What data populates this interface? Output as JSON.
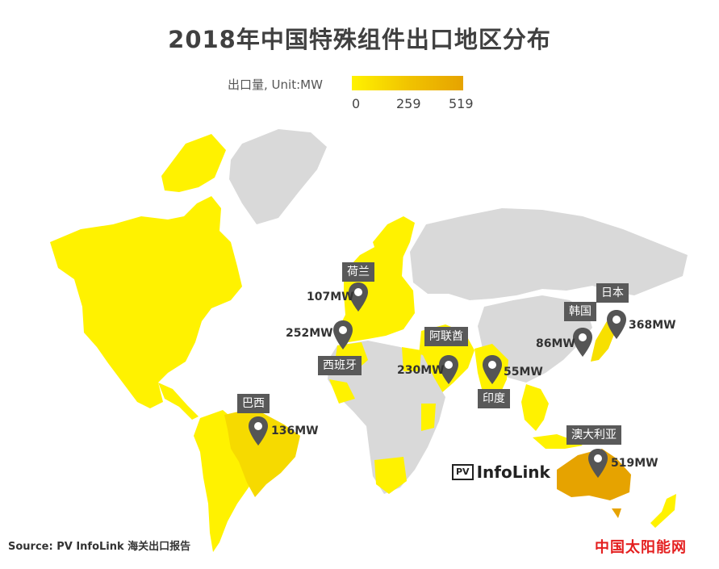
{
  "title": "2018年中国特殊组件出口地区分布",
  "legend": {
    "label": "出口量, Unit:MW",
    "ticks": [
      "0",
      "259",
      "519"
    ],
    "colors": [
      "#fff200",
      "#f1c400",
      "#e6a300"
    ]
  },
  "map": {
    "colors": {
      "none": "#d9d9d9",
      "low": "#fff200",
      "mid": "#f1c400",
      "high": "#e6a300",
      "ocean": "#ffffff"
    }
  },
  "markers": [
    {
      "name": "荷兰",
      "value": "107MW"
    },
    {
      "name": "西班牙",
      "value": "252MW"
    },
    {
      "name": "阿联酋",
      "value": "230MW"
    },
    {
      "name": "印度",
      "value": "55MW"
    },
    {
      "name": "韩国",
      "value": "86MW"
    },
    {
      "name": "日本",
      "value": "368MW"
    },
    {
      "name": "巴西",
      "value": "136MW"
    },
    {
      "name": "澳大利亚",
      "value": "519MW"
    }
  ],
  "logo": {
    "box": "PV",
    "text": "InfoLink"
  },
  "source": "Source: PV InfoLink  海关出口报告",
  "watermark": "中国太阳能网"
}
